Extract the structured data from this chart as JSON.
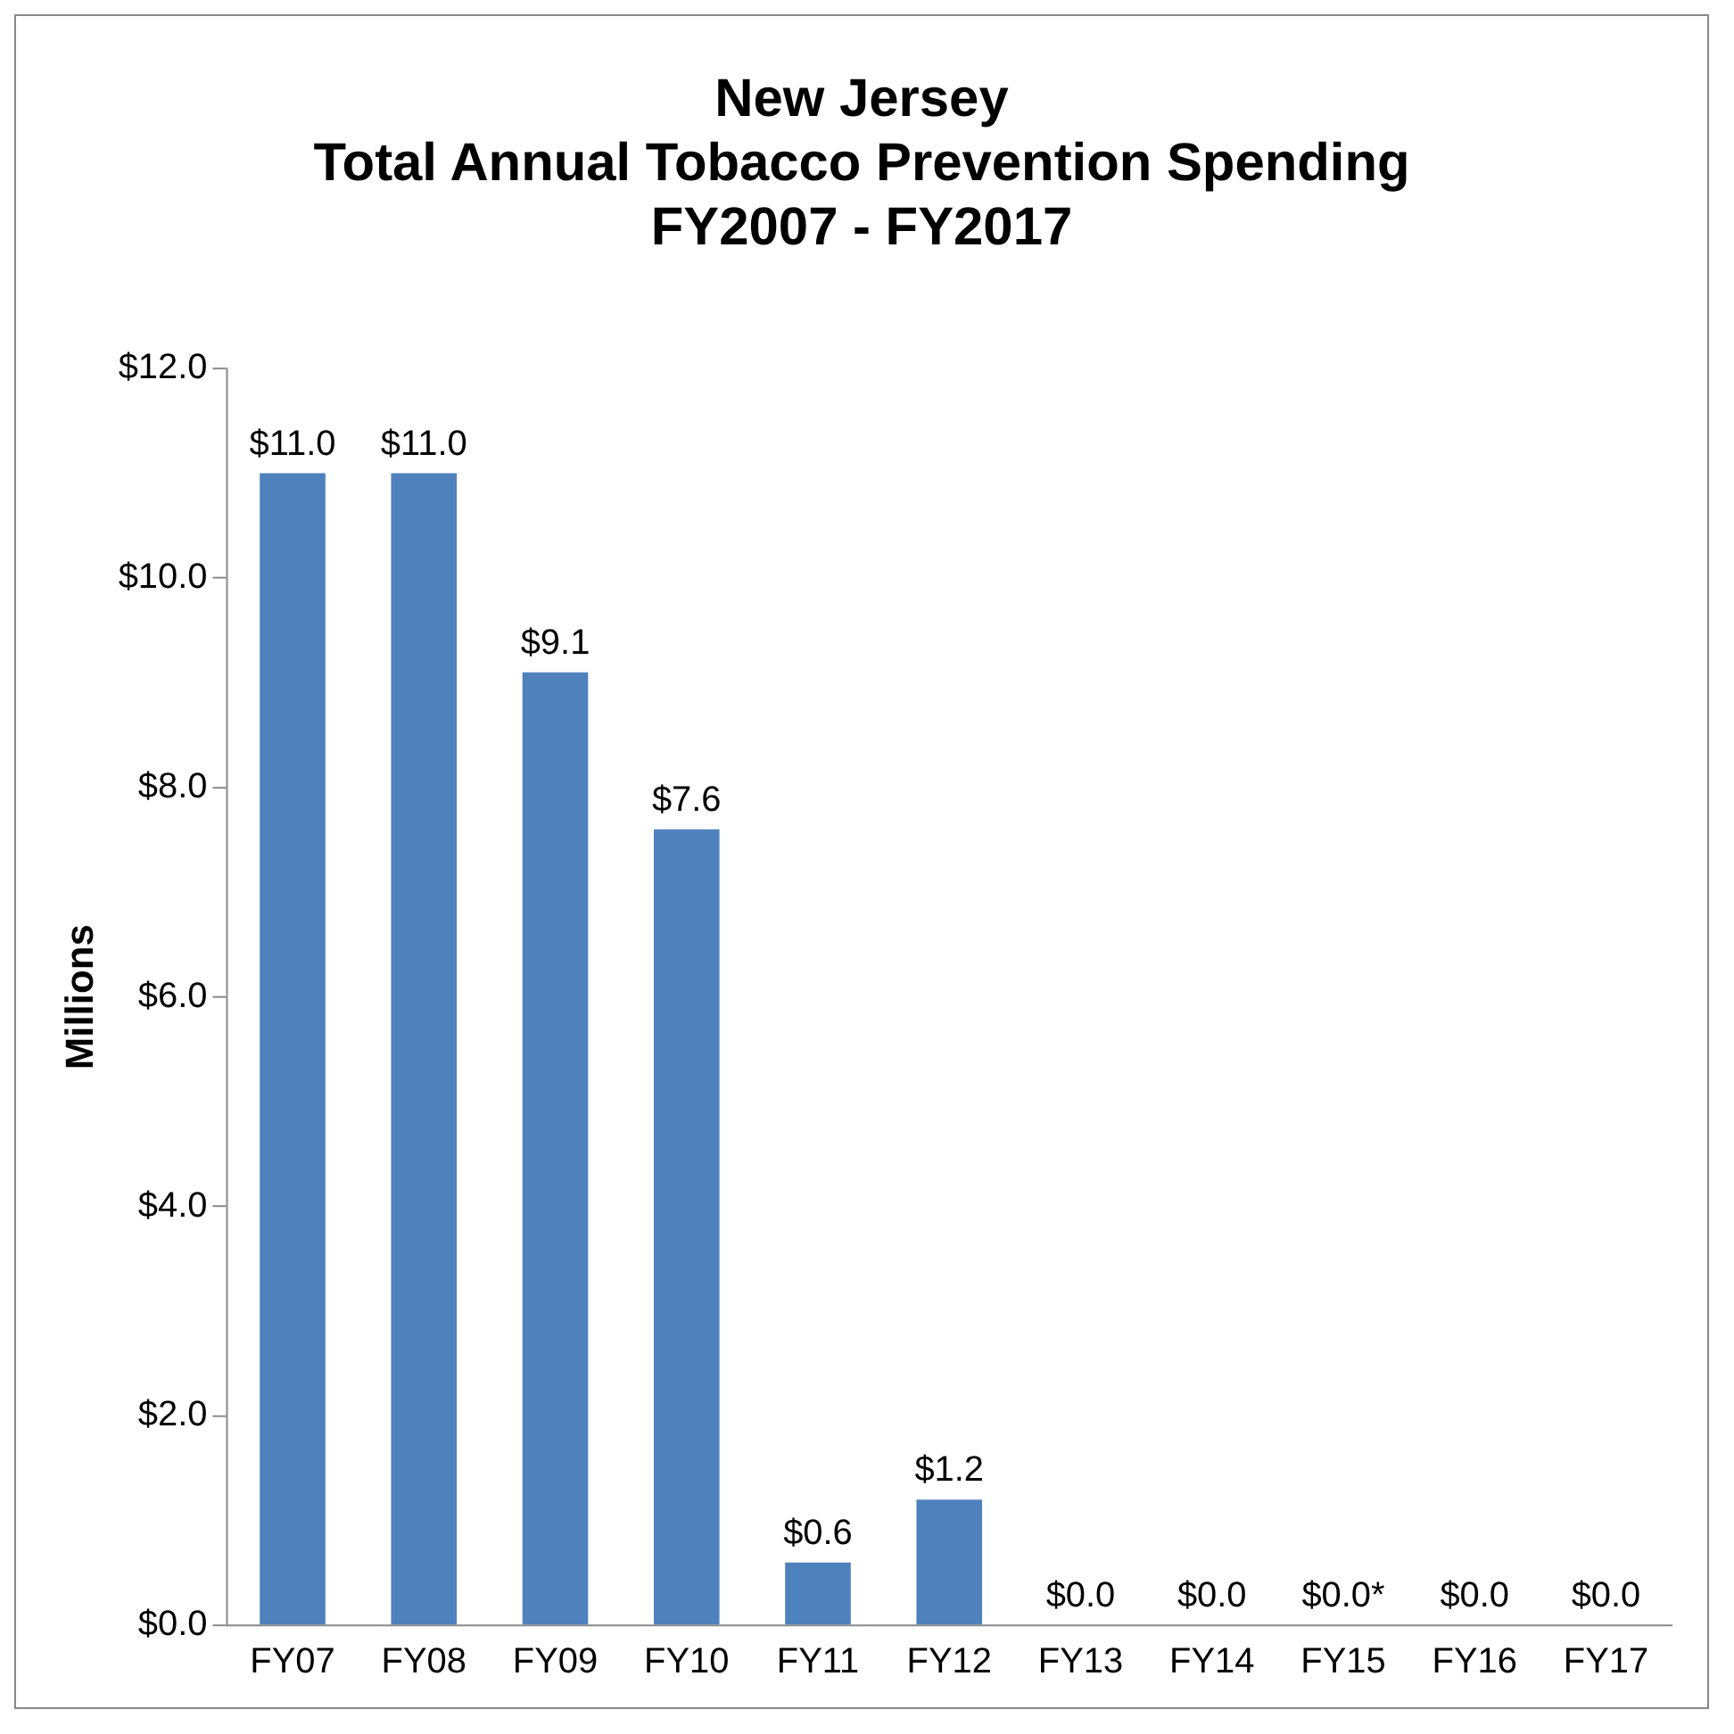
{
  "chart_data": {
    "type": "bar",
    "title": "New Jersey\nTotal Annual Tobacco Prevention Spending\nFY2007 - FY2017",
    "ylabel": "Millions",
    "categories": [
      "FY07",
      "FY08",
      "FY09",
      "FY10",
      "FY11",
      "FY12",
      "FY13",
      "FY14",
      "FY15",
      "FY16",
      "FY17"
    ],
    "values": [
      11.0,
      11.0,
      9.1,
      7.6,
      0.6,
      1.2,
      0,
      0,
      0,
      0,
      0
    ],
    "value_labels": [
      "$11.0",
      "$11.0",
      "$9.1",
      "$7.6",
      "$0.6",
      "$1.2",
      "$0.0",
      "$0.0",
      "$0.0*",
      "$0.0",
      "$0.0"
    ],
    "color": "#4f81bd",
    "ylim": [
      0,
      12
    ],
    "yticks": [
      {
        "value": 0,
        "label": "$0.0"
      },
      {
        "value": 2,
        "label": "$2.0"
      },
      {
        "value": 4,
        "label": "$4.0"
      },
      {
        "value": 6,
        "label": "$6.0"
      },
      {
        "value": 8,
        "label": "$8.0"
      },
      {
        "value": 10,
        "label": "$10.0"
      },
      {
        "value": 12,
        "label": "$12.0"
      }
    ],
    "grid": false,
    "legend": false
  }
}
